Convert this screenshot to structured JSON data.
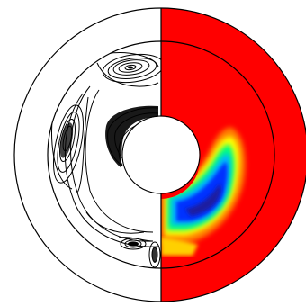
{
  "figure": {
    "left_half": "streamlines",
    "right_half": "filled contour",
    "colors": {
      "background": "#ffffff",
      "outline": "#000000",
      "field_max": "#ff0000",
      "field_high": "#ff7f00",
      "field_mid_high": "#ffff00",
      "field_mid": "#00ff80",
      "field_mid_low": "#00b4ff",
      "field_low": "#0033ff",
      "field_min": "#1a1aa0"
    }
  }
}
